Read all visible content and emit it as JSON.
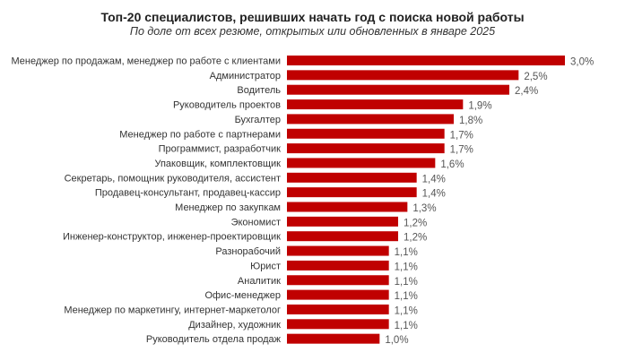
{
  "chart_data": {
    "type": "bar",
    "orientation": "horizontal",
    "title": "Топ-20 специалистов, решивших начать год с поиска новой работы",
    "subtitle": "По доле от всех резюме, открытых или обновленных  в январе  2025",
    "categories": [
      "Менеджер по продажам, менеджер по работе с клиентами",
      "Администратор",
      "Водитель",
      "Руководитель проектов",
      "Бухгалтер",
      "Менеджер по работе с партнерами",
      "Программист, разработчик",
      "Упаковщик, комплектовщик",
      "Секретарь, помощник руководителя, ассистент",
      "Продавец-консультант, продавец-кассир",
      "Менеджер по закупкам",
      "Экономист",
      "Инженер-конструктор, инженер-проектировщик",
      "Разнорабочий",
      "Юрист",
      "Аналитик",
      "Офис-менеджер",
      "Менеджер по маркетингу, интернет-маркетолог",
      "Дизайнер, художник",
      "Руководитель отдела продаж"
    ],
    "values": [
      3.0,
      2.5,
      2.4,
      1.9,
      1.8,
      1.7,
      1.7,
      1.6,
      1.4,
      1.4,
      1.3,
      1.2,
      1.2,
      1.1,
      1.1,
      1.1,
      1.1,
      1.1,
      1.1,
      1.0
    ],
    "value_labels": [
      "3,0%",
      "2,5%",
      "2,4%",
      "1,9%",
      "1,8%",
      "1,7%",
      "1,7%",
      "1,6%",
      "1,4%",
      "1,4%",
      "1,3%",
      "1,2%",
      "1,2%",
      "1,1%",
      "1,1%",
      "1,1%",
      "1,1%",
      "1,1%",
      "1,1%",
      "1,0%"
    ],
    "unit": "%",
    "xlim": [
      0,
      3.0
    ],
    "grid": false,
    "legend": "none",
    "bar_color": "#C00000"
  }
}
